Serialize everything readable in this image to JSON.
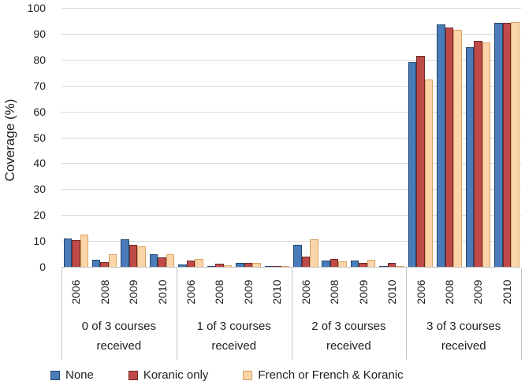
{
  "chart_data": {
    "type": "bar",
    "title": "",
    "ylabel": "Coverage (%)",
    "xlabel": "",
    "ylim": [
      0,
      100
    ],
    "yticks": [
      0,
      10,
      20,
      30,
      40,
      50,
      60,
      70,
      80,
      90,
      100
    ],
    "grid": "horizontal",
    "legend_position": "bottom-left",
    "categories": [
      "0 of 3 courses received",
      "1 of 3 courses received",
      "2 of 3 courses received",
      "3 of 3 courses received"
    ],
    "years": [
      "2006",
      "2008",
      "2009",
      "2010"
    ],
    "series": [
      {
        "name": "None",
        "color": "#4a7cba",
        "border_color": "#24466e",
        "values": [
          [
            11.0,
            2.7,
            10.7,
            4.8
          ],
          [
            0.8,
            0.4,
            1.5,
            0.4
          ],
          [
            8.4,
            2.5,
            2.3,
            0.4
          ],
          [
            79.0,
            93.7,
            84.7,
            94.3
          ]
        ]
      },
      {
        "name": "Koranic only",
        "color": "#be4b48",
        "border_color": "#6e2a28",
        "values": [
          [
            10.4,
            1.9,
            8.5,
            3.7
          ],
          [
            2.3,
            1.1,
            1.5,
            0.2
          ],
          [
            3.9,
            3.2,
            1.5,
            1.5
          ],
          [
            81.5,
            92.4,
            87.4,
            94.2
          ]
        ]
      },
      {
        "name": "French or French & Koranic",
        "color": "#fbd5a9",
        "border_color": "#d8a264",
        "values": [
          [
            12.5,
            4.8,
            7.9,
            4.9
          ],
          [
            3.2,
            0.5,
            1.4,
            0.4
          ],
          [
            10.7,
            2.1,
            2.9,
            0.4
          ],
          [
            72.4,
            91.4,
            86.6,
            94.4
          ]
        ]
      }
    ]
  }
}
